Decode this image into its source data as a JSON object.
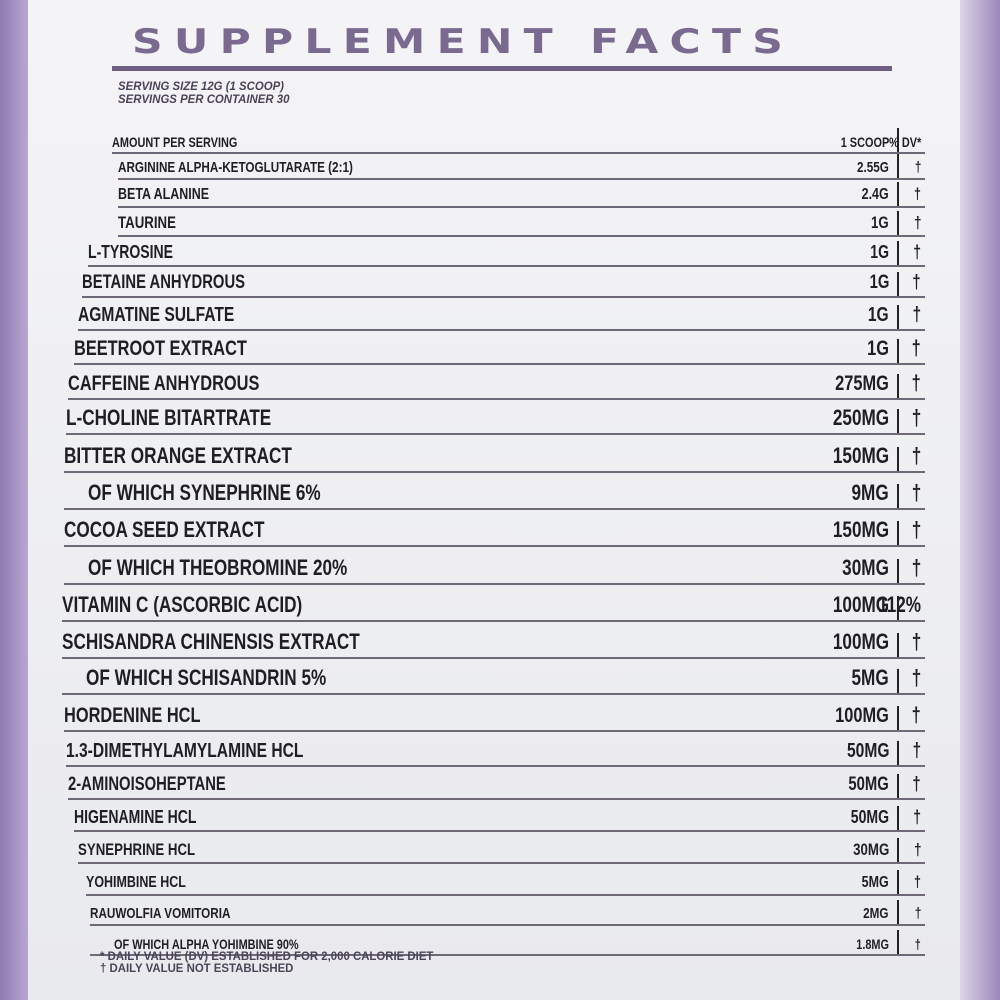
{
  "title": "SUPPLEMENT FACTS",
  "serving_size": "SERVING SIZE 12G (1 SCOOP)",
  "servings_per_container": "SERVINGS PER CONTAINER 30",
  "header": {
    "label": "AMOUNT PER SERVING",
    "amount": "1 SCOOP",
    "dv": "% DV*"
  },
  "ingredients": [
    {
      "name": "ARGININE ALPHA-KETOGLUTARATE (2:1)",
      "amount": "2.55G",
      "dv": "†"
    },
    {
      "name": "BETA ALANINE",
      "amount": "2.4G",
      "dv": "†"
    },
    {
      "name": "TAURINE",
      "amount": "1G",
      "dv": "†"
    },
    {
      "name": "L-TYROSINE",
      "amount": "1G",
      "dv": "†"
    },
    {
      "name": "BETAINE ANHYDROUS",
      "amount": "1G",
      "dv": "†"
    },
    {
      "name": "AGMATINE SULFATE",
      "amount": "1G",
      "dv": "†"
    },
    {
      "name": "BEETROOT EXTRACT",
      "amount": "1G",
      "dv": "†"
    },
    {
      "name": "CAFFEINE ANHYDROUS",
      "amount": "275MG",
      "dv": "†"
    },
    {
      "name": "L-CHOLINE BITARTRATE",
      "amount": "250MG",
      "dv": "†"
    },
    {
      "name": "BITTER ORANGE EXTRACT",
      "amount": "150MG",
      "dv": "†"
    },
    {
      "name": "OF WHICH SYNEPHRINE 6%",
      "amount": "9MG",
      "dv": "†",
      "sub": true
    },
    {
      "name": "COCOA SEED EXTRACT",
      "amount": "150MG",
      "dv": "†"
    },
    {
      "name": "OF WHICH THEOBROMINE 20%",
      "amount": "30MG",
      "dv": "†",
      "sub": true
    },
    {
      "name": "VITAMIN C (ASCORBIC ACID)",
      "amount": "100MG",
      "dv": "112%"
    },
    {
      "name": "SCHISANDRA CHINENSIS EXTRACT",
      "amount": "100MG",
      "dv": "†"
    },
    {
      "name": "OF WHICH SCHISANDRIN 5%",
      "amount": "5MG",
      "dv": "†",
      "sub": true
    },
    {
      "name": "HORDENINE HCL",
      "amount": "100MG",
      "dv": "†"
    },
    {
      "name": "1.3-DIMETHYLAMYLAMINE HCL",
      "amount": "50MG",
      "dv": "†"
    },
    {
      "name": "2-AMINOISOHEPTANE",
      "amount": "50MG",
      "dv": "†"
    },
    {
      "name": "HIGENAMINE HCL",
      "amount": "50MG",
      "dv": "†"
    },
    {
      "name": "SYNEPHRINE HCL",
      "amount": "30MG",
      "dv": "†"
    },
    {
      "name": "YOHIMBINE HCL",
      "amount": "5MG",
      "dv": "†"
    },
    {
      "name": "RAUWOLFIA VOMITORIA",
      "amount": "2MG",
      "dv": "†"
    },
    {
      "name": "OF WHICH ALPHA YOHIMBINE 90%",
      "amount": "1.8MG",
      "dv": "†",
      "sub": true
    }
  ],
  "footnotes": [
    "* DAILY VALUE (DV) ESTABLISHED FOR 2,000 CALORIE DIET",
    "† DAILY VALUE NOT ESTABLISHED"
  ],
  "colors": {
    "title": "#7a6a90",
    "band": "#9b86bb",
    "text": "#1e1e24"
  }
}
